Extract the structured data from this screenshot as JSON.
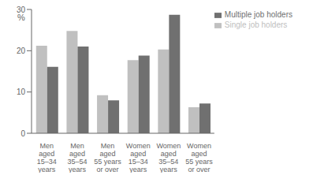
{
  "chart_data": {
    "type": "bar",
    "categories": [
      "Men\naged\n15–34\nyears",
      "Men\naged\n35–54\nyears",
      "Men\naged\n55 years\nor over",
      "Women\naged\n15–34\nyears",
      "Women\naged\n35–54\nyears",
      "Women\naged\n55 years\nor over"
    ],
    "series": [
      {
        "name": "Single job holders",
        "color": "#c0c0c0",
        "values": [
          21.2,
          24.8,
          9.2,
          17.7,
          20.3,
          6.3
        ]
      },
      {
        "name": "Multiple job holders",
        "color": "#707070",
        "values": [
          16.1,
          21.0,
          8.0,
          18.8,
          28.7,
          7.2
        ]
      }
    ],
    "ylabel": "%",
    "ylim": [
      0,
      30
    ],
    "yticks": [
      0,
      10,
      20,
      30
    ],
    "legend": "top"
  }
}
